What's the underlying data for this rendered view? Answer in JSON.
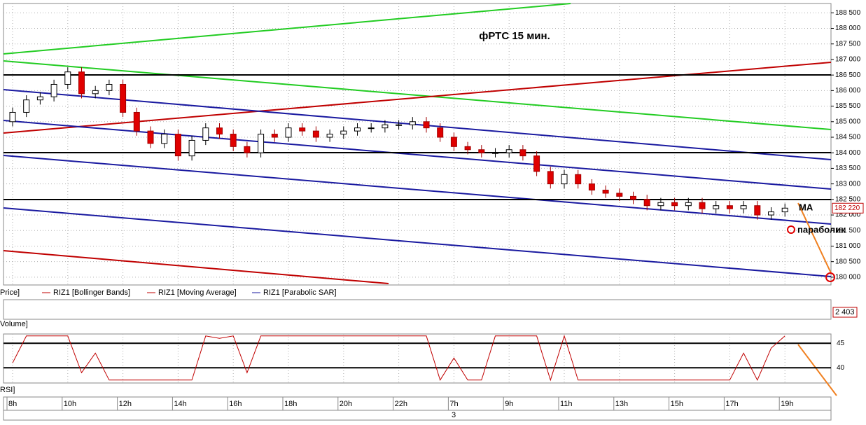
{
  "chart_data": {
    "type": "candlestick",
    "title": "фРТС   15 мин.",
    "annotations": [
      "MA",
      "параболик"
    ],
    "legend": [
      "Price]",
      "RIZ1 [Bollinger Bands]",
      "RIZ1 [Moving Average]",
      "RIZ1 [Parabolic SAR]"
    ],
    "legend_colors": [
      null,
      "#c00000",
      "#c00000",
      "#1a1aa0"
    ],
    "volume_title": "Volume]",
    "volume_label": "2 403",
    "rsi_title": "RSI]",
    "date_label": "3",
    "up_color": "#ffffff",
    "down_color": "#e00000",
    "grid": true,
    "categories": [
      "8h",
      null,
      null,
      null,
      "10h",
      null,
      null,
      null,
      "12h",
      null,
      null,
      null,
      "14h",
      null,
      null,
      null,
      "16h",
      null,
      null,
      null,
      "18h",
      null,
      null,
      null,
      "20h",
      null,
      null,
      null,
      "22h",
      null,
      null,
      null,
      "7h",
      null,
      null,
      null,
      "9h",
      null,
      null,
      null,
      "11h",
      null,
      null,
      null,
      "13h",
      null,
      null,
      null,
      "15h",
      null,
      null,
      null,
      "17h",
      null,
      null,
      null,
      "19h"
    ],
    "open": [
      185000,
      185300,
      185700,
      185800,
      186200,
      186600,
      185900,
      186000,
      186200,
      185300,
      184700,
      184300,
      184600,
      183900,
      184400,
      184800,
      184600,
      184200,
      184000,
      184600,
      184500,
      184800,
      184700,
      184500,
      184600,
      184700,
      184800,
      184800,
      184900,
      184900,
      185000,
      184800,
      184500,
      184200,
      184100,
      184000,
      184000,
      184100,
      183900,
      183400,
      183000,
      183300,
      183000,
      182800,
      182700,
      182600,
      182500,
      182300,
      182400,
      182300,
      182400,
      182200,
      182300,
      182200,
      182300,
      182000,
      182100
    ],
    "high": [
      185450,
      185850,
      185950,
      186350,
      186750,
      186750,
      186150,
      186350,
      186350,
      185450,
      184850,
      184750,
      184750,
      184550,
      184950,
      184950,
      184750,
      184350,
      184750,
      184750,
      184950,
      184950,
      184850,
      184750,
      184850,
      184950,
      184950,
      185050,
      185050,
      185150,
      185150,
      184950,
      184650,
      184350,
      184250,
      184150,
      184250,
      184250,
      184050,
      183550,
      183450,
      183450,
      183150,
      182950,
      182850,
      182750,
      182650,
      182550,
      182550,
      182550,
      182550,
      182450,
      182450,
      182450,
      182450,
      182250,
      182370
    ],
    "low": [
      184850,
      185150,
      185550,
      185650,
      186050,
      185750,
      185750,
      185850,
      185150,
      184550,
      184150,
      184150,
      183750,
      183750,
      184250,
      184450,
      184050,
      183850,
      183850,
      184350,
      184350,
      184550,
      184350,
      184350,
      184450,
      184550,
      184650,
      184650,
      184750,
      184750,
      184650,
      184350,
      184050,
      183950,
      183850,
      183850,
      183850,
      183750,
      183250,
      182850,
      182850,
      182850,
      182650,
      182550,
      182450,
      182350,
      182150,
      182150,
      182150,
      182150,
      182050,
      182050,
      182050,
      182050,
      181850,
      181850,
      181950
    ],
    "close": [
      185300,
      185700,
      185800,
      186200,
      186600,
      185900,
      186000,
      186200,
      185300,
      184700,
      184300,
      184600,
      183900,
      184400,
      184800,
      184600,
      184200,
      184000,
      184600,
      184500,
      184800,
      184700,
      184500,
      184600,
      184700,
      184800,
      184800,
      184900,
      184900,
      185000,
      184800,
      184500,
      184200,
      184100,
      184000,
      184000,
      184100,
      183900,
      183400,
      183000,
      183300,
      183000,
      182800,
      182700,
      182600,
      182500,
      182300,
      182400,
      182300,
      182400,
      182200,
      182300,
      182200,
      182300,
      182000,
      182100,
      182220
    ],
    "last_price": {
      "value": 182220,
      "label": "182 220"
    },
    "ylim": [
      179750,
      188800
    ],
    "yticks": [
      {
        "value": 180000,
        "label": "180 000"
      },
      {
        "value": 180500,
        "label": "180 500"
      },
      {
        "value": 181000,
        "label": "181 000"
      },
      {
        "value": 181500,
        "label": "181 500"
      },
      {
        "value": 182000,
        "label": "182 000"
      },
      {
        "value": 182500,
        "label": "182 500"
      },
      {
        "value": 183000,
        "label": "183 000"
      },
      {
        "value": 183500,
        "label": "183 500"
      },
      {
        "value": 184000,
        "label": "184 000"
      },
      {
        "value": 184500,
        "label": "184 500"
      },
      {
        "value": 185000,
        "label": "185 000"
      },
      {
        "value": 185500,
        "label": "185 500"
      },
      {
        "value": 186000,
        "label": "186 000"
      },
      {
        "value": 186500,
        "label": "186 500"
      },
      {
        "value": 187000,
        "label": "187 000"
      },
      {
        "value": 187500,
        "label": "187 500"
      },
      {
        "value": 188000,
        "label": "188 000"
      },
      {
        "value": 188500,
        "label": "188 500"
      }
    ],
    "rsi": {
      "color": "#c00000",
      "values": [
        41,
        46.5,
        46.5,
        46.5,
        46.5,
        39,
        43,
        37.5,
        37.5,
        37.5,
        37.5,
        37.5,
        37.5,
        37.5,
        46.5,
        46,
        46.5,
        39,
        46.5,
        46.5,
        46.5,
        46.5,
        46.5,
        46.5,
        46.5,
        46.5,
        46.5,
        46.5,
        46.5,
        46.5,
        46.5,
        37.5,
        42,
        37.5,
        37.5,
        46.5,
        46.5,
        46.5,
        46.5,
        37.5,
        46.5,
        37.5,
        37.5,
        37.5,
        37.5,
        37.5,
        37.5,
        37.5,
        37.5,
        37.5,
        37.5,
        37.5,
        37.5,
        43,
        37.5,
        44,
        46.5
      ],
      "ylim": [
        36.9,
        46.9
      ],
      "yticks": [
        40,
        45
      ]
    }
  }
}
